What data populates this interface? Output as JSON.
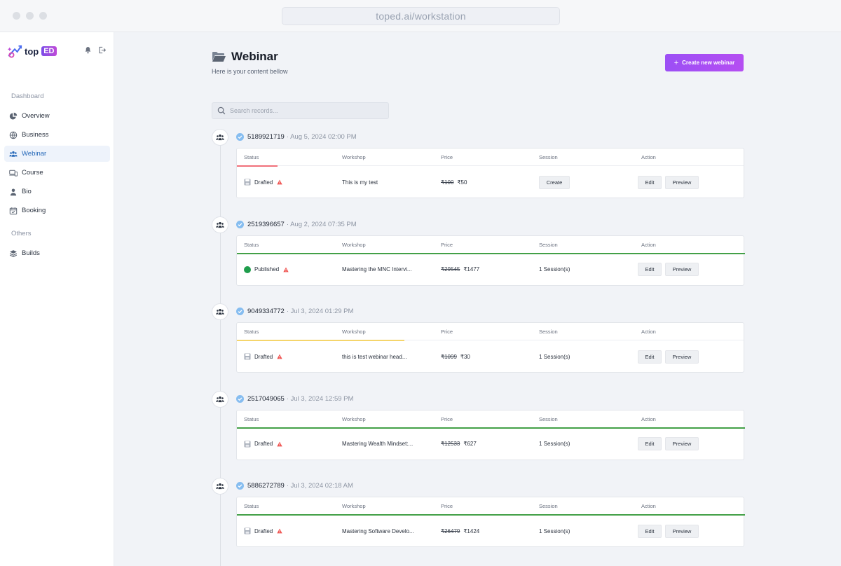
{
  "browser": {
    "url": "toped.ai/workstation"
  },
  "brand": {
    "logo_text_1": "top",
    "logo_text_2": "ED"
  },
  "sidebar": {
    "section_dashboard": "Dashboard",
    "section_others": "Others",
    "items": [
      {
        "label": "Overview",
        "icon": "pie-chart-icon"
      },
      {
        "label": "Business",
        "icon": "globe-icon"
      },
      {
        "label": "Webinar",
        "icon": "users-icon",
        "active": true
      },
      {
        "label": "Course",
        "icon": "devices-icon"
      },
      {
        "label": "Bio",
        "icon": "user-icon"
      },
      {
        "label": "Booking",
        "icon": "calendar-check-icon"
      }
    ],
    "others": [
      {
        "label": "Builds",
        "icon": "layers-icon"
      }
    ]
  },
  "header": {
    "title": "Webinar",
    "subtitle": "Here is your content bellow",
    "create_label": "Create new webinar",
    "create_plus": "+"
  },
  "search": {
    "placeholder": "Search records..."
  },
  "columns": {
    "status": "Status",
    "workshop": "Workshop",
    "price": "Price",
    "session": "Session",
    "action": "Action"
  },
  "actions": {
    "edit": "Edit",
    "preview": "Preview",
    "create": "Create"
  },
  "colors": {
    "accent_purple": "#a14ff4",
    "published_green": "#1f9d4c",
    "warning_red": "#ef4444",
    "check_blue": "#7fb9ef"
  },
  "records": [
    {
      "id": "5189921719",
      "date": "· Aug 5, 2024 02:00 PM",
      "status": "Drafted",
      "workshop": "This is my test",
      "price_old": "₹100",
      "price_new": "₹50",
      "session": "",
      "has_create": true,
      "accent_color": "#f0707a",
      "accent_start": 0.0,
      "accent_end": 0.08
    },
    {
      "id": "2519396657",
      "date": "· Aug 2, 2024 07:35 PM",
      "status": "Published",
      "workshop": "Mastering the MNC Intervi...",
      "price_old": "₹29545",
      "price_new": "₹1477",
      "session": "1 Session(s)",
      "has_create": false,
      "accent_color": "#43a047",
      "accent_start": 0.0,
      "accent_end": 1.0
    },
    {
      "id": "9049334772",
      "date": "· Jul 3, 2024 01:29 PM",
      "status": "Drafted",
      "workshop": "this is test webinar head...",
      "price_old": "₹1099",
      "price_new": "₹30",
      "session": "1 Session(s)",
      "has_create": false,
      "accent_color": "#f5d56b",
      "accent_start": 0.0,
      "accent_end": 0.33
    },
    {
      "id": "2517049065",
      "date": "· Jul 3, 2024 12:59 PM",
      "status": "Drafted",
      "workshop": "Mastering Wealth Mindset:...",
      "price_old": "₹12533",
      "price_new": "₹627",
      "session": "1 Session(s)",
      "has_create": false,
      "accent_color": "#43a047",
      "accent_start": 0.0,
      "accent_end": 1.0
    },
    {
      "id": "5886272789",
      "date": "· Jul 3, 2024 02:18 AM",
      "status": "Drafted",
      "workshop": "Mastering Software Develo...",
      "price_old": "₹26479",
      "price_new": "₹1424",
      "session": "1 Session(s)",
      "has_create": false,
      "accent_color": "#43a047",
      "accent_start": 0.0,
      "accent_end": 1.0
    }
  ]
}
